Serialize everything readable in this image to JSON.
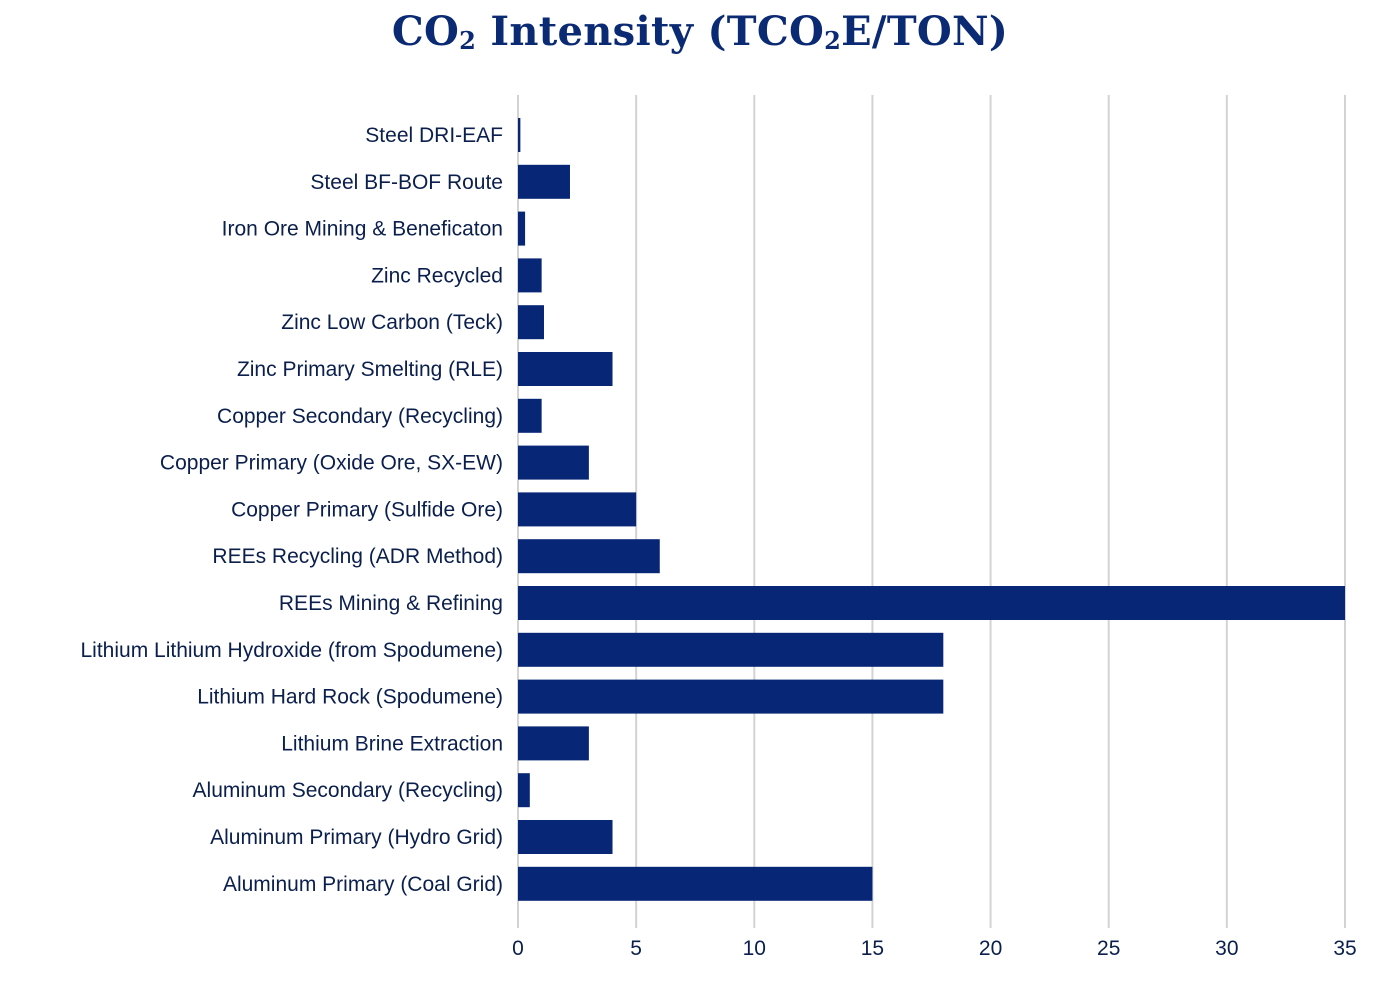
{
  "colors": {
    "bar": "#072675",
    "grid": "#d3d3d3",
    "title": "#0b2a74",
    "text": "#0b1f4d"
  },
  "chart_data": {
    "type": "bar",
    "orientation": "horizontal",
    "title_parts": [
      "CO",
      "2",
      " Intensity (TCO",
      "2",
      "E/TON)"
    ],
    "title": "CO2 Intensity (TCO2E/TON)",
    "xlabel": "",
    "ylabel": "",
    "xlim": [
      0,
      35
    ],
    "xticks": [
      "0",
      "5",
      "10",
      "15",
      "20",
      "25",
      "30",
      "35"
    ],
    "grid": true,
    "legend": "none",
    "categories": [
      "Steel DRI-EAF",
      "Steel BF-BOF Route",
      "Iron Ore Mining & Beneficaton",
      "Zinc Recycled",
      "Zinc Low Carbon (Teck)",
      "Zinc Primary Smelting (RLE)",
      "Copper Secondary (Recycling)",
      "Copper Primary (Oxide Ore, SX-EW)",
      "Copper Primary (Sulfide Ore)",
      "REEs Recycling (ADR Method)",
      "REEs Mining & Refining",
      "Lithium Lithium Hydroxide (from Spodumene)",
      "Lithium Hard Rock (Spodumene)",
      "Lithium Brine Extraction",
      "Aluminum Secondary (Recycling)",
      "Aluminum Primary (Hydro Grid)",
      "Aluminum Primary (Coal Grid)"
    ],
    "values": [
      0.1,
      2.2,
      0.3,
      1.0,
      1.1,
      4.0,
      1.0,
      3.0,
      5.0,
      6.0,
      35.0,
      18.0,
      18.0,
      3.0,
      0.5,
      4.0,
      15.0
    ]
  }
}
